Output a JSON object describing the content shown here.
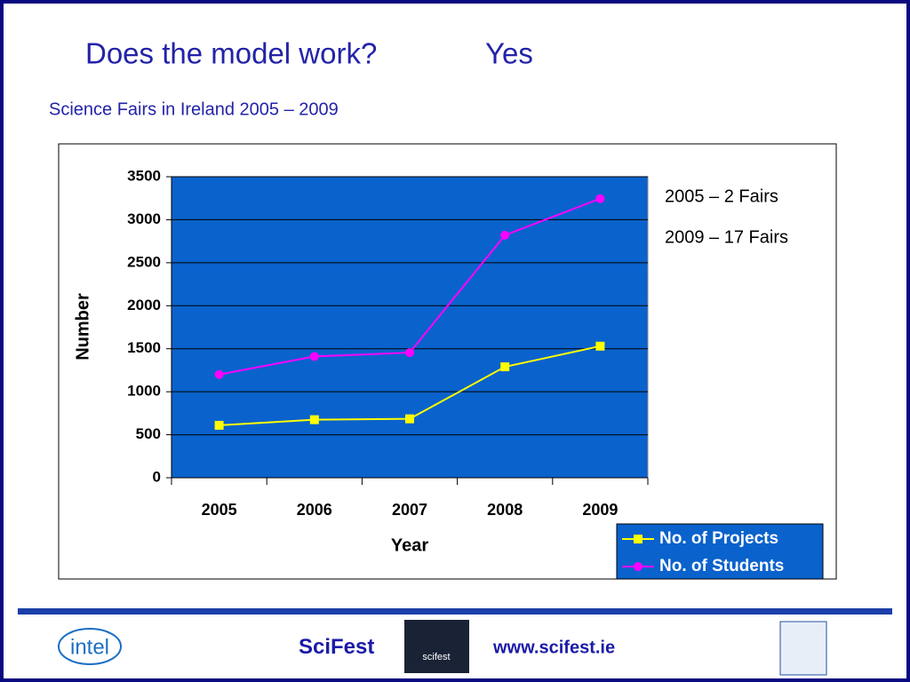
{
  "slide": {
    "title": "Does the model work?",
    "answer": "Yes",
    "subtitle": "Science Fairs in Ireland 2005 – 2009"
  },
  "chart_data": {
    "type": "line",
    "categories": [
      "2005",
      "2006",
      "2007",
      "2008",
      "2009"
    ],
    "series": [
      {
        "name": "No. of Projects",
        "color": "#ffff00",
        "marker": "square",
        "values": [
          610,
          675,
          685,
          1290,
          1530
        ]
      },
      {
        "name": "No. of Students",
        "color": "#ff00ff",
        "marker": "circle",
        "values": [
          1200,
          1410,
          1455,
          2820,
          3245
        ]
      }
    ],
    "ylim": [
      0,
      3500
    ],
    "yticks": [
      0,
      500,
      1000,
      1500,
      2000,
      2500,
      3000,
      3500
    ],
    "y_label": "Number",
    "x_label": "Year",
    "grid": true,
    "plot_background": "#0a62cc",
    "legend": "bottom-right",
    "annotations": [
      "2005 – 2 Fairs",
      "2009 – 17 Fairs"
    ]
  },
  "footer": {
    "intel_logo": "intel",
    "scifest": "SciFest",
    "scifest_logo": "scifest",
    "url": "www.scifest.ie"
  }
}
